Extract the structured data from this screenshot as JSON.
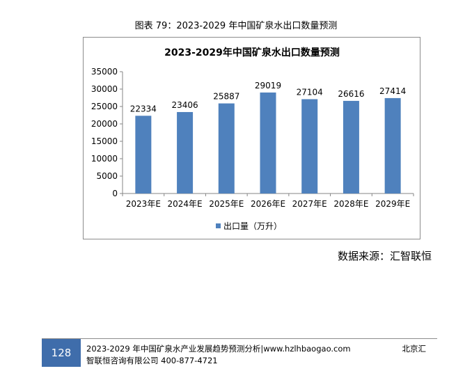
{
  "document": {
    "figure_caption": "图表 79：2023-2029 年中国矿泉水出口数量预测",
    "source_note": "数据来源：汇智联恒",
    "footer": {
      "page_number": "128",
      "line1": "2023-2029 年中国矿泉水产业发展趋势预测分析|www.hzlhbaogao.com",
      "line2": "智联恒咨询有限公司  400-877-4721",
      "right": "北京汇"
    }
  },
  "chart_data": {
    "type": "bar",
    "title": "2023-2029年中国矿泉水出口数量预测",
    "categories": [
      "2023年E",
      "2024年E",
      "2025年E",
      "2026年E",
      "2027年E",
      "2028年E",
      "2029年E"
    ],
    "series": [
      {
        "name": "出口量（万升）",
        "values": [
          22334,
          23406,
          25887,
          29019,
          27104,
          26616,
          27414
        ]
      }
    ],
    "yticks": [
      0,
      5000,
      10000,
      15000,
      20000,
      25000,
      30000,
      35000
    ],
    "ylim": [
      0,
      35000
    ],
    "grid": false,
    "legend": "bottom",
    "bar_color": "#4f81bd"
  }
}
